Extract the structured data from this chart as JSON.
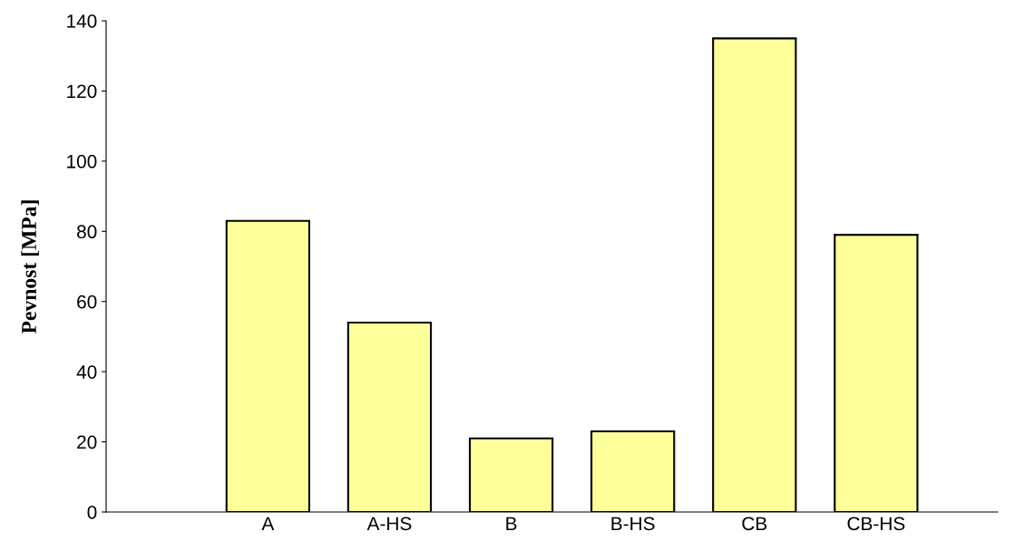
{
  "chart_data": {
    "type": "bar",
    "ylabel": "Pevnost [MPa]",
    "categories": [
      "A",
      "A-HS",
      "B",
      "B-HS",
      "CB",
      "CB-HS"
    ],
    "values": [
      83,
      54,
      21,
      23,
      135,
      79
    ],
    "color": "#ffff99",
    "ylim": [
      0,
      140
    ],
    "yticks": [
      0,
      20,
      40,
      60,
      80,
      100,
      120,
      140
    ],
    "grid": false,
    "legend": false
  }
}
